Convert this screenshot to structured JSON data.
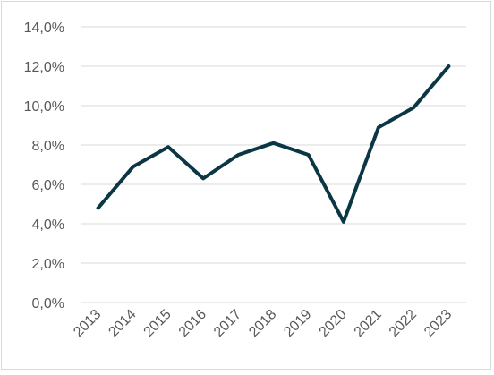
{
  "chart_data": {
    "type": "line",
    "title": "",
    "xlabel": "",
    "ylabel": "",
    "x": [
      "2013",
      "2014",
      "2015",
      "2016",
      "2017",
      "2018",
      "2019",
      "2020",
      "2021",
      "2022",
      "2023"
    ],
    "series": [
      {
        "values": [
          4.8,
          6.9,
          7.9,
          6.3,
          7.5,
          8.1,
          7.5,
          4.1,
          8.9,
          9.9,
          12.0
        ],
        "color": "#0b3644"
      }
    ],
    "ylim": [
      0,
      14
    ],
    "yticks": [
      0,
      2,
      4,
      6,
      8,
      10,
      12,
      14
    ],
    "ytick_labels": [
      "0,0%",
      "2,0%",
      "4,0%",
      "6,0%",
      "8,0%",
      "10,0%",
      "12,0%",
      "14,0%"
    ],
    "grid": true,
    "gridline_color": "#d9d9d9",
    "legend": "none"
  }
}
